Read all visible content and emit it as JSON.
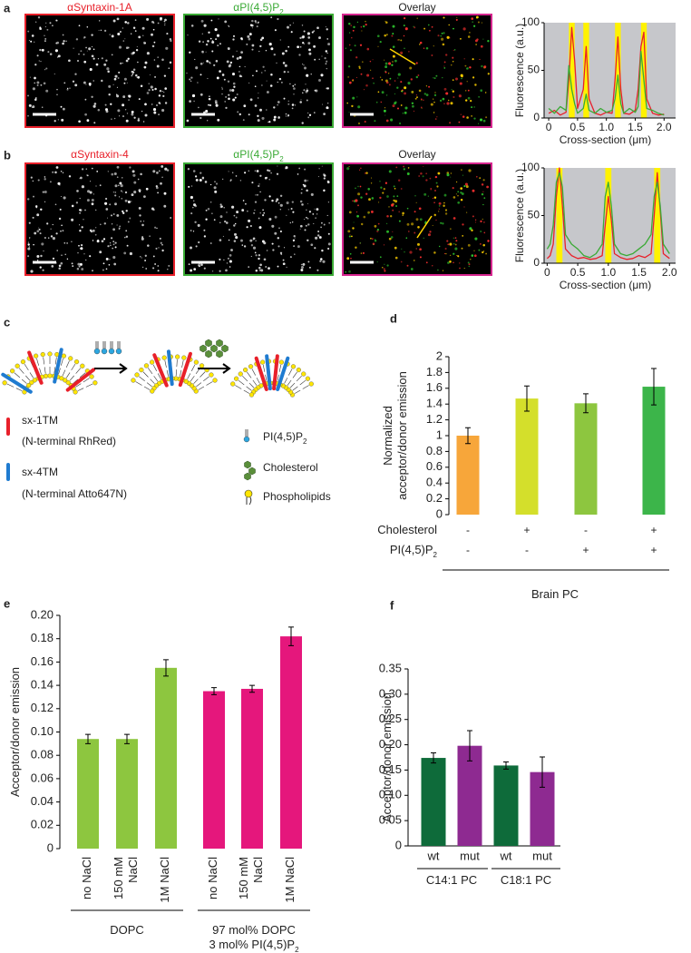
{
  "panels": {
    "a": "a",
    "b": "b",
    "c": "c",
    "d": "d",
    "e": "e",
    "f": "f"
  },
  "images": {
    "a": [
      {
        "title": "αSyntaxin-1A"
      },
      {
        "title": {
          "text": "αPI(4,5)P",
          "sub": "2"
        }
      },
      {
        "title": "Overlay"
      }
    ],
    "b": [
      {
        "title": "αSyntaxin-4"
      },
      {
        "title": {
          "text": "αPI(4,5)P",
          "sub": "2"
        }
      },
      {
        "title": "Overlay"
      }
    ]
  },
  "diagram": {
    "legend": [
      {
        "name": "sx-1TM",
        "detail": "(N-terminal RhRed)"
      },
      {
        "name": "sx-4TM",
        "detail": "(N-terminal Atto647N)"
      },
      {
        "name": {
          "text": "PI(4,5)P",
          "sub": "2"
        }
      },
      {
        "name": "Cholesterol"
      },
      {
        "name": "Phospholipids"
      }
    ]
  },
  "chart_data": [
    {
      "type": "line",
      "ylabel": "Fluorescence (a.u.)",
      "xlabel": "Cross-section (μm)",
      "x": [
        0,
        0.1,
        0.2,
        0.3,
        0.35,
        0.4,
        0.45,
        0.5,
        0.6,
        0.65,
        0.7,
        0.8,
        0.9,
        1.0,
        1.1,
        1.15,
        1.2,
        1.25,
        1.3,
        1.4,
        1.5,
        1.55,
        1.6,
        1.65,
        1.7,
        1.8,
        1.9,
        2.0
      ],
      "series": [
        {
          "color": "#e8202a",
          "values": [
            5,
            8,
            3,
            6,
            40,
            95,
            60,
            10,
            30,
            75,
            20,
            5,
            3,
            6,
            5,
            40,
            85,
            30,
            5,
            4,
            8,
            30,
            75,
            90,
            20,
            5,
            3,
            4
          ]
        },
        {
          "color": "#3aaa35",
          "values": [
            10,
            5,
            12,
            8,
            55,
            30,
            15,
            5,
            10,
            25,
            8,
            5,
            10,
            6,
            8,
            20,
            45,
            15,
            5,
            10,
            6,
            12,
            70,
            40,
            10,
            8,
            5,
            3
          ]
        }
      ],
      "highlights": [
        [
          0.35,
          0.45
        ],
        [
          0.6,
          0.7
        ],
        [
          1.15,
          1.25
        ],
        [
          1.6,
          1.7
        ]
      ],
      "xlim": [
        -0.08,
        2.2
      ],
      "ylim": [
        0,
        100
      ],
      "xticks": [
        0,
        0.5,
        {
          "value": 1,
          "label": "1.0"
        },
        1.5,
        {
          "value": 2,
          "label": "2.0"
        }
      ],
      "yticks": [
        0,
        50,
        100
      ],
      "background": "#c6c7cb",
      "highlight_color": "#fff200"
    },
    {
      "type": "line",
      "ylabel": "Fluorescence (a.u.)",
      "xlabel": "Cross-section (μm)",
      "x": [
        0,
        0.05,
        0.1,
        0.15,
        0.2,
        0.25,
        0.3,
        0.4,
        0.5,
        0.6,
        0.7,
        0.8,
        0.9,
        0.95,
        1.0,
        1.05,
        1.1,
        1.2,
        1.3,
        1.4,
        1.5,
        1.6,
        1.7,
        1.75,
        1.8,
        1.85,
        1.9,
        2.0
      ],
      "series": [
        {
          "color": "#e8202a",
          "values": [
            5,
            8,
            20,
            70,
            100,
            60,
            15,
            8,
            5,
            6,
            4,
            5,
            8,
            40,
            70,
            45,
            10,
            6,
            4,
            5,
            8,
            6,
            10,
            50,
            95,
            55,
            10,
            5
          ]
        },
        {
          "color": "#3aaa35",
          "values": [
            15,
            20,
            40,
            85,
            95,
            80,
            30,
            20,
            15,
            8,
            6,
            10,
            20,
            70,
            85,
            60,
            20,
            10,
            8,
            10,
            15,
            20,
            30,
            70,
            85,
            60,
            20,
            10
          ]
        }
      ],
      "highlights": [
        [
          0.15,
          0.25
        ],
        [
          0.95,
          1.05
        ],
        [
          1.75,
          1.85
        ]
      ],
      "xlim": [
        -0.05,
        2.1
      ],
      "ylim": [
        0,
        100
      ],
      "xticks": [
        0,
        0.5,
        {
          "value": 1,
          "label": "1.0"
        },
        1.5,
        {
          "value": 2,
          "label": "2.0"
        }
      ],
      "yticks": [
        0,
        50,
        100
      ],
      "background": "#c6c7cb",
      "highlight_color": "#fff200"
    },
    {
      "type": "bar",
      "ylabel": [
        "Normalized",
        "acceptor/donor emission"
      ],
      "values": [
        1.0,
        1.47,
        1.41,
        1.62
      ],
      "errors": [
        0.1,
        0.16,
        0.12,
        0.23
      ],
      "colors": [
        "#f7a63a",
        "#d4df2b",
        "#8dc63f",
        "#3cb54a"
      ],
      "ylim": [
        0,
        2
      ],
      "yticks": [
        0,
        0.2,
        0.4,
        0.6,
        0.8,
        1,
        1.2,
        1.4,
        1.6,
        1.8,
        2
      ],
      "conditions": [
        {
          "label": "Cholesterol",
          "values": [
            "-",
            "+",
            "-",
            "+"
          ]
        },
        {
          "label": {
            "text": "PI(4,5)P",
            "sub": "2"
          },
          "values": [
            "-",
            "-",
            "+",
            "+"
          ]
        }
      ],
      "groups": [
        {
          "label": "Brain PC"
        }
      ]
    },
    {
      "type": "bar",
      "ylabel": "Acceptor/donor emission",
      "categories": [
        "no NaCl",
        [
          "150 mM",
          "NaCl"
        ],
        "1M NaCl",
        "no NaCl",
        [
          "150 mM",
          "NaCl"
        ],
        "1M NaCl"
      ],
      "values": [
        0.094,
        0.094,
        0.155,
        0.135,
        0.137,
        0.182
      ],
      "errors": [
        0.004,
        0.004,
        0.007,
        0.003,
        0.003,
        0.008
      ],
      "colors": [
        "#8dc63f",
        "#8dc63f",
        "#8dc63f",
        "#e5177c",
        "#e5177c",
        "#e5177c"
      ],
      "ylim": [
        0,
        0.2
      ],
      "yticks": [
        0,
        0.02,
        0.04,
        0.06,
        0.08,
        {
          "value": 0.1,
          "label": "0.10"
        },
        0.12,
        0.14,
        0.16,
        0.18,
        {
          "value": 0.2,
          "label": "0.20"
        }
      ],
      "groups": [
        {
          "label": "DOPC"
        },
        {
          "label": [
            "97 mol% DOPC",
            {
              "text": "3 mol% PI(4,5)P",
              "sub": "2"
            }
          ]
        }
      ]
    },
    {
      "type": "bar",
      "ylabel": "Acceptor/donor emission",
      "categories": [
        "wt",
        "mut",
        "wt",
        "mut"
      ],
      "values": [
        0.174,
        0.198,
        0.159,
        0.146
      ],
      "errors": [
        0.01,
        0.03,
        0.007,
        0.03
      ],
      "colors": [
        "#0e6b3a",
        "#8e2a91",
        "#0e6b3a",
        "#8e2a91"
      ],
      "ylim": [
        0,
        0.35
      ],
      "yticks": [
        0,
        0.05,
        {
          "value": 0.1,
          "label": "0.10"
        },
        0.15,
        {
          "value": 0.2,
          "label": "0.20"
        },
        0.25,
        {
          "value": 0.3,
          "label": "0.30"
        },
        0.35
      ],
      "groups": [
        {
          "label": "C14:1 PC"
        },
        {
          "label": "C18:1 PC"
        }
      ]
    }
  ]
}
